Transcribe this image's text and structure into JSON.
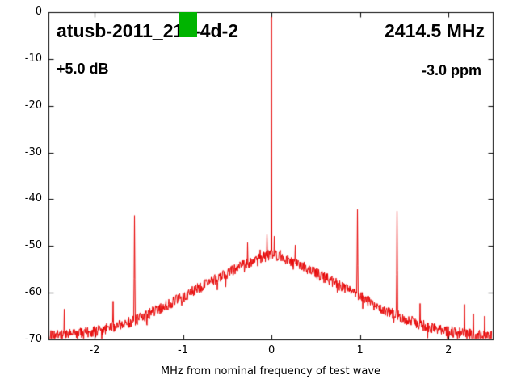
{
  "chart_data": {
    "type": "line",
    "title": "atusb-2011_214-4d-2",
    "center_frequency_label": "2414.5 MHz",
    "gain_label": "+5.0 dB",
    "frequency_offset_label": "-3.0 ppm",
    "xlabel": "MHz from nominal frequency of test wave",
    "ylabel": "",
    "xlim": [
      -2.52,
      2.5
    ],
    "ylim": [
      -70,
      0
    ],
    "xticks": [
      -2,
      -1,
      0,
      1,
      2
    ],
    "yticks": [
      0,
      -10,
      -20,
      -30,
      -40,
      -50,
      -60,
      -70
    ],
    "grid": false,
    "legend": "none",
    "trace_color": "#e60000",
    "axis_color": "#000000",
    "noise_floor_db": -69.4,
    "noise_amplitude_db": 1.2,
    "hump": {
      "center_mhz": 0,
      "peak_db": -52,
      "shape_coeff": 9.5,
      "shape_exp": 1.25
    },
    "carrier": {
      "x_mhz": 0,
      "peak_db": -1
    },
    "spurs": [
      {
        "x_mhz": -2.34,
        "db": -63.5
      },
      {
        "x_mhz": -1.79,
        "db": -61.8
      },
      {
        "x_mhz": -1.55,
        "db": -43.5
      },
      {
        "x_mhz": -1.24,
        "db": -65.5
      },
      {
        "x_mhz": -0.79,
        "db": -60.8
      },
      {
        "x_mhz": -0.52,
        "db": -56.3
      },
      {
        "x_mhz": -0.27,
        "db": -49.3
      },
      {
        "x_mhz": -0.13,
        "db": -50.8
      },
      {
        "x_mhz": -0.05,
        "db": -47.6
      },
      {
        "x_mhz": 0.03,
        "db": -47.9
      },
      {
        "x_mhz": 0.1,
        "db": -50.9
      },
      {
        "x_mhz": 0.27,
        "db": -49.8
      },
      {
        "x_mhz": 0.52,
        "db": -55.8
      },
      {
        "x_mhz": 0.77,
        "db": -58.8
      },
      {
        "x_mhz": 0.97,
        "db": -42.2
      },
      {
        "x_mhz": 1.42,
        "db": -42.6
      },
      {
        "x_mhz": 1.68,
        "db": -62.3
      },
      {
        "x_mhz": 2.18,
        "db": -62.5
      },
      {
        "x_mhz": 2.28,
        "db": -64.5
      },
      {
        "x_mhz": 2.41,
        "db": -65.0
      }
    ],
    "pass_marker": {
      "x_min_mhz": -1.04,
      "x_max_mhz": -0.84,
      "db_max": 0,
      "db_min": -5.3,
      "color": "#00b400"
    }
  }
}
